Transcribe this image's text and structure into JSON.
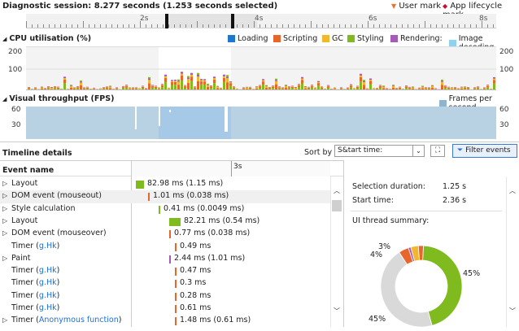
{
  "header": {
    "title": "Diagnostic session: 8.277 seconds (1.253 seconds selected)",
    "user_mark": "User mark",
    "app_mark": "App lifecycle mark",
    "user_mark_color": "#e8752b",
    "app_mark_color": "#c8102e",
    "ruler_labels": [
      "2s",
      "4s",
      "6s",
      "8s"
    ]
  },
  "cpu": {
    "title": "CPU utilisation (%)",
    "y_labels": [
      "200",
      "100"
    ],
    "legend": [
      {
        "label": "Loading",
        "color": "#1e78d0"
      },
      {
        "label": "Scripting",
        "color": "#e8652b"
      },
      {
        "label": "GC",
        "color": "#f0b82a"
      },
      {
        "label": "Styling",
        "color": "#7fba1e"
      },
      {
        "label": "Rendering:",
        "color": "#a55ab8"
      },
      {
        "label": "Image decoding",
        "color": "#8fd2ef"
      }
    ]
  },
  "fps": {
    "title": "Visual throughput (FPS)",
    "y_labels": [
      "60",
      "30"
    ],
    "legend_label": "Frames per second",
    "legend_color": "#8fb4d0"
  },
  "details": {
    "title": "Timeline details",
    "sort_label": "Sort by",
    "sort_value": "S&tart time:",
    "filter_label": "Filter events",
    "col_event": "Event name",
    "col_time": "3s",
    "rows": [
      {
        "name": "Layout",
        "expand": "▷",
        "link": "",
        "value": "82.98 ms (1.15 ms)",
        "color": "#7fba1e",
        "bar": 10
      },
      {
        "name": "DOM event (mouseout)",
        "expand": "▷",
        "link": "",
        "value": "1.01 ms (0.038 ms)",
        "color": "#e8652b",
        "bar": 2
      },
      {
        "name": "Style calculation",
        "expand": "▷",
        "link": "",
        "value": "0.41 ms (0.0049 ms)",
        "color": "#7fba1e",
        "bar": 2
      },
      {
        "name": "Layout",
        "expand": "▷",
        "link": "",
        "value": "82.21 ms (0.54 ms)",
        "color": "#7fba1e",
        "bar": 14
      },
      {
        "name": "DOM event (mouseover)",
        "expand": "▷",
        "link": "",
        "value": "0.77 ms (0.038 ms)",
        "color": "#e8652b",
        "bar": 2
      },
      {
        "name": "Timer (",
        "expand": "",
        "link": "g.Hk",
        "suffix": ")",
        "value": "0.49 ms",
        "color": "#e8652b",
        "bar": 2
      },
      {
        "name": "Paint",
        "expand": "▷",
        "link": "",
        "value": "2.44 ms (1.01 ms)",
        "color": "#a55ab8",
        "bar": 2
      },
      {
        "name": "Timer (",
        "expand": "",
        "link": "g.Hk",
        "suffix": ")",
        "value": "0.47 ms",
        "color": "#e8652b",
        "bar": 2
      },
      {
        "name": "Timer (",
        "expand": "",
        "link": "g.Hk",
        "suffix": ")",
        "value": "0.3 ms",
        "color": "#e8652b",
        "bar": 2
      },
      {
        "name": "Timer (",
        "expand": "",
        "link": "g.Hk",
        "suffix": ")",
        "value": "0.28 ms",
        "color": "#e8652b",
        "bar": 2
      },
      {
        "name": "Timer (",
        "expand": "",
        "link": "g.Hk",
        "suffix": ")",
        "value": "0.61 ms",
        "color": "#e8652b",
        "bar": 2
      },
      {
        "name": "Timer (",
        "expand": "▷",
        "link": "Anonymous function",
        "suffix": ")",
        "value": "1.48 ms (0.61 ms)",
        "color": "#e8652b",
        "bar": 2
      }
    ]
  },
  "summary": {
    "sel_duration_label": "Selection duration:",
    "sel_duration_value": "1.25 s",
    "start_time_label": "Start time:",
    "start_time_value": "2.36 s",
    "ui_thread_label": "UI thread summary:",
    "pct_green": "45%",
    "pct_gray": "45%",
    "pct_4": "4%",
    "pct_3": "3%",
    "donut": [
      {
        "share": 45,
        "color": "#7fba1e"
      },
      {
        "share": 45,
        "color": "#d9d9d9"
      },
      {
        "share": 4,
        "color": "#e8652b"
      },
      {
        "share": 1,
        "color": "#a55ab8"
      },
      {
        "share": 3,
        "color": "#f0b82a"
      },
      {
        "share": 2,
        "color": "#e8652b"
      }
    ]
  }
}
